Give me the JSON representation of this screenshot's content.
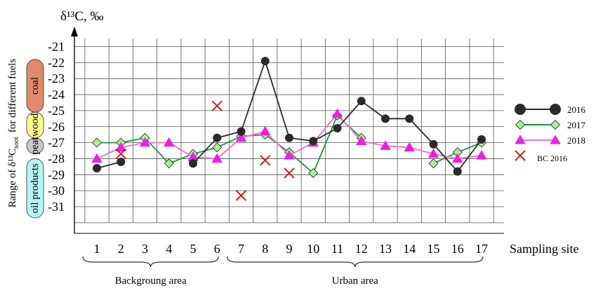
{
  "chart_data": {
    "type": "line",
    "ylabel": "δ¹³C, ‰",
    "xlabel": "Sampling site",
    "side_label": "Range of δ¹³C",
    "side_label_sub": "soot",
    "side_label_tail": "for different fuels",
    "x": [
      1,
      2,
      3,
      4,
      5,
      6,
      7,
      8,
      9,
      10,
      11,
      12,
      13,
      14,
      15,
      16,
      17
    ],
    "ylim": [
      -32,
      -20
    ],
    "yticks": [
      -21,
      -22,
      -23,
      -24,
      -25,
      -26,
      -27,
      -28,
      -29,
      -30,
      -31
    ],
    "grid": true,
    "series": [
      {
        "name": "2016",
        "marker": "circle",
        "color": "#2a2a2a",
        "fill": "#2a2a2a",
        "values": [
          -28.6,
          -28.2,
          null,
          null,
          -28.3,
          -26.7,
          -26.3,
          -21.9,
          -26.7,
          -26.9,
          -26.1,
          -24.4,
          -25.5,
          -25.5,
          -27.1,
          -28.8,
          -26.8
        ]
      },
      {
        "name": "2017",
        "marker": "diamond",
        "color": "#1a9641",
        "fill": "#a6f08f",
        "values": [
          -27.0,
          -27.0,
          -26.7,
          -28.3,
          -27.7,
          -27.3,
          -26.6,
          -26.5,
          -27.6,
          -28.9,
          -25.3,
          -26.7,
          null,
          null,
          -28.3,
          -27.6,
          -27.0
        ]
      },
      {
        "name": "2018",
        "marker": "triangle",
        "color": "#e87bc4",
        "fill": "#ee1ee8",
        "values": [
          -28.0,
          -27.3,
          -27.0,
          -27.0,
          -27.9,
          -28.0,
          -26.7,
          -26.3,
          -27.8,
          -27.0,
          -25.2,
          -26.9,
          -27.2,
          -27.3,
          -27.7,
          -28.0,
          -27.8
        ]
      },
      {
        "name": "BC 2016",
        "marker": "cross",
        "color": "#cc2222",
        "no_line": true,
        "values": [
          null,
          -27.7,
          null,
          null,
          null,
          -24.7,
          -30.3,
          -28.1,
          -28.9,
          null,
          null,
          null,
          null,
          null,
          null,
          null,
          null
        ]
      }
    ],
    "fuel_ranges": [
      {
        "label": "coal",
        "from": -21.8,
        "to": -25.1,
        "color": "#e08a6a"
      },
      {
        "label": "wood",
        "from": -25.1,
        "to": -26.7,
        "color": "#ffff8c"
      },
      {
        "label": "peat",
        "from": -26.7,
        "to": -27.7,
        "color": "#c8c8c8"
      },
      {
        "label": "oil products",
        "from": -28.0,
        "to": -31.7,
        "color": "#b8f4f4"
      }
    ],
    "areas": [
      {
        "label": "Backgroung area",
        "from": 1,
        "to": 6
      },
      {
        "label": "Urban area",
        "from": 7,
        "to": 17
      }
    ]
  }
}
